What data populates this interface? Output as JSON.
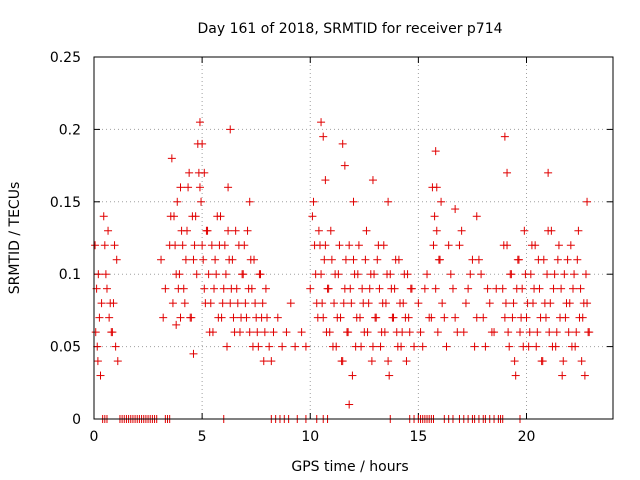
{
  "chart_data": {
    "type": "scatter",
    "title": "Day 161 of 2018, SRMTID for receiver p714",
    "xlabel": "GPS time / hours",
    "ylabel": "SRMTID / TECUs",
    "xlim": [
      0,
      24
    ],
    "ylim": [
      0,
      0.25
    ],
    "xticks": [
      0,
      5,
      10,
      15,
      20
    ],
    "xtick_labels": [
      "0",
      "5",
      "10",
      "15",
      "20"
    ],
    "yticks": [
      0,
      0.05,
      0.1,
      0.15,
      0.2,
      0.25
    ],
    "ytick_labels": [
      "0",
      "0.05",
      "0.1",
      "0.15",
      "0.2",
      "0.25"
    ],
    "grid": true,
    "marker": "+",
    "color": "#e00000",
    "series": [
      {
        "name": "SRMTID",
        "x": [
          0.05,
          0.08,
          0.12,
          0.15,
          0.18,
          0.2,
          0.25,
          0.3,
          0.35,
          0.45,
          0.5,
          0.55,
          0.6,
          0.7,
          0.8,
          0.9,
          1.0,
          1.05,
          1.1,
          0.65,
          0.75,
          0.85,
          0.95,
          3.1,
          3.2,
          3.3,
          3.5,
          3.6,
          3.7,
          3.8,
          3.9,
          4.0,
          4.1,
          4.2,
          4.3,
          4.4,
          4.5,
          4.6,
          4.7,
          4.8,
          4.9,
          5.0,
          5.1,
          5.2,
          5.3,
          5.4,
          5.5,
          5.6,
          5.7,
          5.8,
          5.9,
          6.0,
          6.1,
          6.2,
          6.3,
          6.4,
          6.5,
          6.6,
          6.7,
          6.8,
          6.9,
          7.0,
          7.1,
          7.2,
          7.3,
          7.4,
          7.5,
          7.6,
          7.7,
          7.8,
          7.9,
          8.0,
          8.1,
          8.2,
          8.3,
          8.5,
          8.7,
          8.9,
          9.1,
          9.3,
          3.55,
          3.65,
          3.75,
          3.85,
          3.95,
          4.05,
          4.15,
          4.25,
          4.35,
          4.45,
          4.55,
          4.65,
          4.75,
          4.85,
          4.95,
          5.05,
          5.15,
          5.25,
          5.35,
          5.45,
          5.55,
          5.65,
          5.75,
          5.85,
          5.95,
          6.05,
          6.15,
          6.25,
          6.35,
          6.45,
          6.55,
          6.65,
          6.75,
          6.85,
          6.95,
          7.05,
          7.15,
          7.25,
          7.35,
          7.45,
          7.55,
          7.65,
          7.75,
          7.85,
          7.95,
          4.9,
          5.0,
          6.3,
          6.2,
          7.2,
          4.6,
          5.1,
          4.0,
          3.8,
          9.6,
          9.8,
          10.0,
          10.1,
          10.2,
          10.3,
          10.4,
          10.5,
          10.6,
          10.7,
          10.8,
          10.9,
          11.0,
          11.1,
          11.2,
          11.3,
          11.4,
          11.5,
          11.6,
          11.7,
          11.8,
          11.9,
          12.0,
          12.1,
          12.2,
          12.3,
          12.4,
          12.5,
          12.6,
          12.7,
          12.8,
          12.9,
          13.0,
          13.1,
          13.2,
          13.3,
          13.4,
          13.5,
          13.6,
          13.7,
          13.8,
          13.9,
          14.0,
          14.1,
          14.2,
          14.3,
          14.4,
          14.5,
          14.6,
          14.7,
          14.8,
          10.15,
          10.25,
          10.35,
          10.45,
          10.55,
          10.65,
          10.75,
          10.85,
          10.95,
          11.05,
          11.15,
          11.25,
          11.35,
          11.45,
          11.55,
          11.65,
          11.75,
          11.85,
          11.95,
          12.05,
          12.15,
          12.25,
          12.35,
          12.45,
          12.55,
          12.65,
          12.75,
          12.85,
          12.95,
          13.05,
          13.15,
          13.25,
          13.35,
          13.45,
          13.55,
          13.65,
          13.75,
          13.85,
          13.95,
          14.05,
          14.15,
          14.25,
          14.35,
          14.45,
          14.55,
          14.65,
          10.5,
          10.6,
          11.5,
          11.6,
          12.9,
          13.6,
          10.7,
          12.0,
          11.8,
          15.0,
          15.2,
          15.4,
          15.6,
          15.7,
          15.8,
          15.9,
          16.0,
          16.1,
          16.3,
          16.5,
          16.7,
          16.9,
          17.1,
          17.3,
          17.5,
          17.7,
          17.9,
          18.1,
          18.3,
          18.5,
          18.6,
          15.1,
          15.3,
          15.5,
          15.65,
          15.75,
          15.85,
          15.95,
          16.05,
          16.2,
          16.4,
          16.6,
          16.8,
          17.0,
          17.2,
          17.4,
          17.6,
          17.8,
          18.0,
          18.2,
          18.4,
          15.8,
          15.85,
          16.7,
          17.7,
          18.9,
          19.0,
          19.1,
          19.2,
          19.3,
          19.4,
          19.5,
          19.6,
          19.7,
          19.8,
          19.9,
          20.0,
          20.1,
          20.2,
          20.3,
          20.4,
          20.5,
          20.6,
          20.7,
          20.8,
          20.9,
          21.0,
          21.1,
          21.2,
          21.3,
          21.4,
          21.5,
          21.6,
          21.7,
          21.8,
          21.9,
          22.0,
          22.1,
          22.2,
          22.3,
          22.4,
          22.5,
          22.6,
          22.7,
          22.8,
          22.9,
          18.95,
          19.05,
          19.15,
          19.25,
          19.35,
          19.45,
          19.55,
          19.65,
          19.75,
          19.85,
          19.95,
          20.05,
          20.15,
          20.25,
          20.35,
          20.45,
          20.55,
          20.65,
          20.75,
          20.85,
          20.95,
          21.05,
          21.15,
          21.25,
          21.35,
          21.45,
          21.55,
          21.65,
          21.75,
          21.85,
          21.95,
          22.05,
          22.15,
          22.25,
          22.35,
          22.45,
          22.55,
          22.65,
          22.75,
          22.85,
          19.0,
          19.1,
          21.0,
          22.8,
          0.4,
          0.5,
          0.6,
          1.2,
          1.3,
          1.4,
          1.5,
          1.6,
          1.7,
          1.8,
          1.9,
          2.0,
          2.1,
          2.2,
          2.3,
          2.4,
          2.5,
          2.6,
          2.7,
          2.8,
          2.9,
          3.3,
          3.4,
          3.5,
          6.0,
          8.2,
          8.4,
          8.6,
          8.8,
          9.0,
          9.4,
          9.8,
          10.3,
          10.6,
          10.8,
          13.7,
          14.6,
          14.8,
          15.0,
          15.1,
          15.2,
          15.3,
          15.4,
          15.5,
          15.6,
          15.7,
          16.2,
          16.4,
          16.6,
          16.9,
          17.1,
          17.3,
          17.5,
          17.6,
          17.8,
          18.0,
          18.1,
          18.3,
          18.5,
          18.7,
          18.8,
          18.9,
          19.7
        ],
        "y": [
          0.12,
          0.06,
          0.09,
          0.05,
          0.04,
          0.1,
          0.07,
          0.03,
          0.08,
          0.14,
          0.12,
          0.1,
          0.09,
          0.07,
          0.06,
          0.08,
          0.05,
          0.11,
          0.04,
          0.13,
          0.08,
          0.06,
          0.12,
          0.11,
          0.07,
          0.09,
          0.12,
          0.18,
          0.14,
          0.1,
          0.09,
          0.16,
          0.12,
          0.08,
          0.13,
          0.17,
          0.07,
          0.11,
          0.14,
          0.19,
          0.16,
          0.12,
          0.09,
          0.13,
          0.1,
          0.08,
          0.06,
          0.11,
          0.14,
          0.12,
          0.07,
          0.09,
          0.1,
          0.13,
          0.08,
          0.11,
          0.06,
          0.09,
          0.12,
          0.07,
          0.1,
          0.08,
          0.13,
          0.06,
          0.09,
          0.11,
          0.07,
          0.05,
          0.1,
          0.08,
          0.06,
          0.07,
          0.05,
          0.04,
          0.06,
          0.07,
          0.05,
          0.06,
          0.08,
          0.05,
          0.14,
          0.08,
          0.12,
          0.15,
          0.1,
          0.13,
          0.09,
          0.11,
          0.16,
          0.07,
          0.14,
          0.12,
          0.1,
          0.17,
          0.15,
          0.11,
          0.08,
          0.13,
          0.06,
          0.12,
          0.09,
          0.1,
          0.07,
          0.14,
          0.08,
          0.12,
          0.05,
          0.11,
          0.09,
          0.07,
          0.13,
          0.08,
          0.06,
          0.1,
          0.12,
          0.07,
          0.09,
          0.11,
          0.05,
          0.08,
          0.06,
          0.1,
          0.07,
          0.04,
          0.09,
          0.205,
          0.19,
          0.2,
          0.16,
          0.15,
          0.045,
          0.17,
          0.07,
          0.065,
          0.06,
          0.05,
          0.09,
          0.14,
          0.12,
          0.08,
          0.13,
          0.1,
          0.07,
          0.12,
          0.09,
          0.06,
          0.11,
          0.08,
          0.05,
          0.1,
          0.07,
          0.04,
          0.09,
          0.06,
          0.12,
          0.08,
          0.11,
          0.05,
          0.1,
          0.07,
          0.09,
          0.06,
          0.13,
          0.08,
          0.1,
          0.05,
          0.07,
          0.11,
          0.09,
          0.06,
          0.12,
          0.08,
          0.04,
          0.1,
          0.07,
          0.09,
          0.06,
          0.11,
          0.05,
          0.08,
          0.07,
          0.1,
          0.06,
          0.09,
          0.05,
          0.15,
          0.1,
          0.07,
          0.12,
          0.08,
          0.11,
          0.06,
          0.09,
          0.13,
          0.05,
          0.1,
          0.07,
          0.12,
          0.04,
          0.08,
          0.11,
          0.06,
          0.09,
          0.03,
          0.1,
          0.07,
          0.12,
          0.05,
          0.08,
          0.11,
          0.06,
          0.09,
          0.04,
          0.1,
          0.07,
          0.12,
          0.05,
          0.08,
          0.06,
          0.1,
          0.03,
          0.09,
          0.07,
          0.11,
          0.05,
          0.08,
          0.06,
          0.1,
          0.04,
          0.07,
          0.09,
          0.205,
          0.195,
          0.19,
          0.175,
          0.165,
          0.15,
          0.165,
          0.15,
          0.01,
          0.08,
          0.05,
          0.1,
          0.07,
          0.12,
          0.09,
          0.06,
          0.11,
          0.08,
          0.05,
          0.1,
          0.07,
          0.12,
          0.06,
          0.09,
          0.11,
          0.07,
          0.1,
          0.05,
          0.08,
          0.06,
          0.09,
          0.06,
          0.09,
          0.07,
          0.16,
          0.14,
          0.13,
          0.11,
          0.15,
          0.07,
          0.12,
          0.09,
          0.06,
          0.13,
          0.08,
          0.1,
          0.05,
          0.11,
          0.07,
          0.09,
          0.06,
          0.185,
          0.16,
          0.145,
          0.14,
          0.09,
          0.07,
          0.12,
          0.05,
          0.1,
          0.08,
          0.03,
          0.11,
          0.06,
          0.09,
          0.13,
          0.07,
          0.05,
          0.1,
          0.08,
          0.12,
          0.06,
          0.09,
          0.04,
          0.11,
          0.07,
          0.13,
          0.08,
          0.05,
          0.1,
          0.06,
          0.12,
          0.09,
          0.04,
          0.07,
          0.11,
          0.08,
          0.05,
          0.1,
          0.06,
          0.13,
          0.09,
          0.07,
          0.03,
          0.08,
          0.06,
          0.12,
          0.08,
          0.06,
          0.1,
          0.07,
          0.04,
          0.09,
          0.11,
          0.07,
          0.05,
          0.1,
          0.08,
          0.06,
          0.12,
          0.09,
          0.05,
          0.11,
          0.07,
          0.04,
          0.08,
          0.1,
          0.06,
          0.13,
          0.09,
          0.05,
          0.11,
          0.07,
          0.03,
          0.1,
          0.08,
          0.06,
          0.12,
          0.09,
          0.05,
          0.11,
          0.07,
          0.04,
          0.08,
          0.1,
          0.06,
          0.195,
          0.17,
          0.17,
          0.15,
          0,
          0,
          0,
          0,
          0,
          0,
          0,
          0,
          0,
          0,
          0,
          0,
          0,
          0,
          0,
          0,
          0,
          0,
          0,
          0,
          0,
          0,
          0,
          0,
          0,
          0,
          0,
          0,
          0,
          0,
          0,
          0,
          0,
          0,
          0,
          0,
          0,
          0,
          0,
          0,
          0,
          0,
          0,
          0,
          0,
          0,
          0,
          0,
          0,
          0,
          0,
          0,
          0,
          0,
          0,
          0,
          0,
          0,
          0,
          0,
          0,
          0,
          0
        ]
      }
    ]
  }
}
